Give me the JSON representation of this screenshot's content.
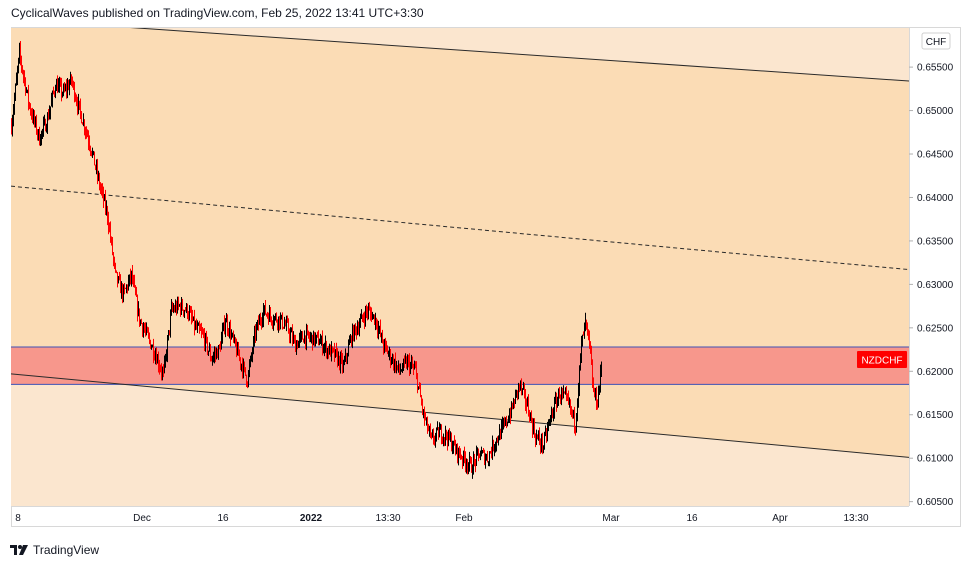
{
  "header": {
    "text": "CyclicalWaves published on TradingView.com, Feb 25, 2022 13:41 UTC+3:30"
  },
  "footer": {
    "brand": "TradingView"
  },
  "chart_data": {
    "type": "candlestick",
    "symbol": "NZDCHF",
    "currency": "CHF",
    "y_range": [
      0.6045,
      0.6595
    ],
    "y_ticks": [
      "0.65500",
      "0.65000",
      "0.64500",
      "0.64000",
      "0.63500",
      "0.63000",
      "0.62500",
      "0.62000",
      "0.61500",
      "0.61000",
      "0.60500"
    ],
    "x_ticks": [
      "8",
      "Dec",
      "16",
      "2022",
      "13:30",
      "Feb",
      "Mar",
      "16",
      "Apr",
      "13:30"
    ],
    "zone": {
      "top": 0.6228,
      "bottom": 0.6185,
      "color": "#f7978c"
    },
    "channel": {
      "upper_start": 0.6605,
      "upper_end": 0.6534,
      "middle_start": 0.6413,
      "middle_end": 0.6317,
      "lower_start": 0.6197,
      "lower_end": 0.6101
    },
    "colors": {
      "fill_outer": "#fbe6cf",
      "fill_channel": "#fbdcb5",
      "up": "#000000",
      "down": "#ff0000",
      "label_bg": "#ff0000"
    },
    "price_path": [
      [
        0,
        0.6483
      ],
      [
        8,
        0.6565
      ],
      [
        18,
        0.6505
      ],
      [
        28,
        0.6468
      ],
      [
        36,
        0.649
      ],
      [
        44,
        0.653
      ],
      [
        52,
        0.652
      ],
      [
        60,
        0.6535
      ],
      [
        68,
        0.65
      ],
      [
        74,
        0.648
      ],
      [
        80,
        0.6455
      ],
      [
        88,
        0.6415
      ],
      [
        96,
        0.638
      ],
      [
        104,
        0.631
      ],
      [
        112,
        0.6288
      ],
      [
        120,
        0.631
      ],
      [
        128,
        0.626
      ],
      [
        136,
        0.624
      ],
      [
        144,
        0.622
      ],
      [
        152,
        0.6195
      ],
      [
        160,
        0.627
      ],
      [
        168,
        0.6275
      ],
      [
        176,
        0.627
      ],
      [
        184,
        0.625
      ],
      [
        192,
        0.624
      ],
      [
        200,
        0.6215
      ],
      [
        208,
        0.6225
      ],
      [
        214,
        0.626
      ],
      [
        220,
        0.624
      ],
      [
        228,
        0.6215
      ],
      [
        236,
        0.619
      ],
      [
        244,
        0.6245
      ],
      [
        252,
        0.627
      ],
      [
        260,
        0.6262
      ],
      [
        268,
        0.626
      ],
      [
        276,
        0.625
      ],
      [
        284,
        0.623
      ],
      [
        292,
        0.624
      ],
      [
        300,
        0.6238
      ],
      [
        308,
        0.6235
      ],
      [
        316,
        0.6225
      ],
      [
        324,
        0.6218
      ],
      [
        332,
        0.6205
      ],
      [
        340,
        0.624
      ],
      [
        348,
        0.6255
      ],
      [
        356,
        0.627
      ],
      [
        364,
        0.626
      ],
      [
        372,
        0.623
      ],
      [
        380,
        0.6215
      ],
      [
        388,
        0.62
      ],
      [
        396,
        0.621
      ],
      [
        404,
        0.62
      ],
      [
        412,
        0.615
      ],
      [
        420,
        0.612
      ],
      [
        428,
        0.613
      ],
      [
        436,
        0.6125
      ],
      [
        444,
        0.611
      ],
      [
        452,
        0.61
      ],
      [
        460,
        0.609
      ],
      [
        468,
        0.6105
      ],
      [
        476,
        0.61
      ],
      [
        484,
        0.612
      ],
      [
        492,
        0.6135
      ],
      [
        500,
        0.6155
      ],
      [
        508,
        0.6185
      ],
      [
        516,
        0.616
      ],
      [
        524,
        0.6125
      ],
      [
        532,
        0.6115
      ],
      [
        540,
        0.615
      ],
      [
        548,
        0.6175
      ],
      [
        556,
        0.6165
      ],
      [
        564,
        0.614
      ],
      [
        570,
        0.623
      ],
      [
        574,
        0.6255
      ],
      [
        578,
        0.623
      ],
      [
        582,
        0.6175
      ],
      [
        586,
        0.6165
      ],
      [
        590,
        0.6205
      ]
    ]
  }
}
